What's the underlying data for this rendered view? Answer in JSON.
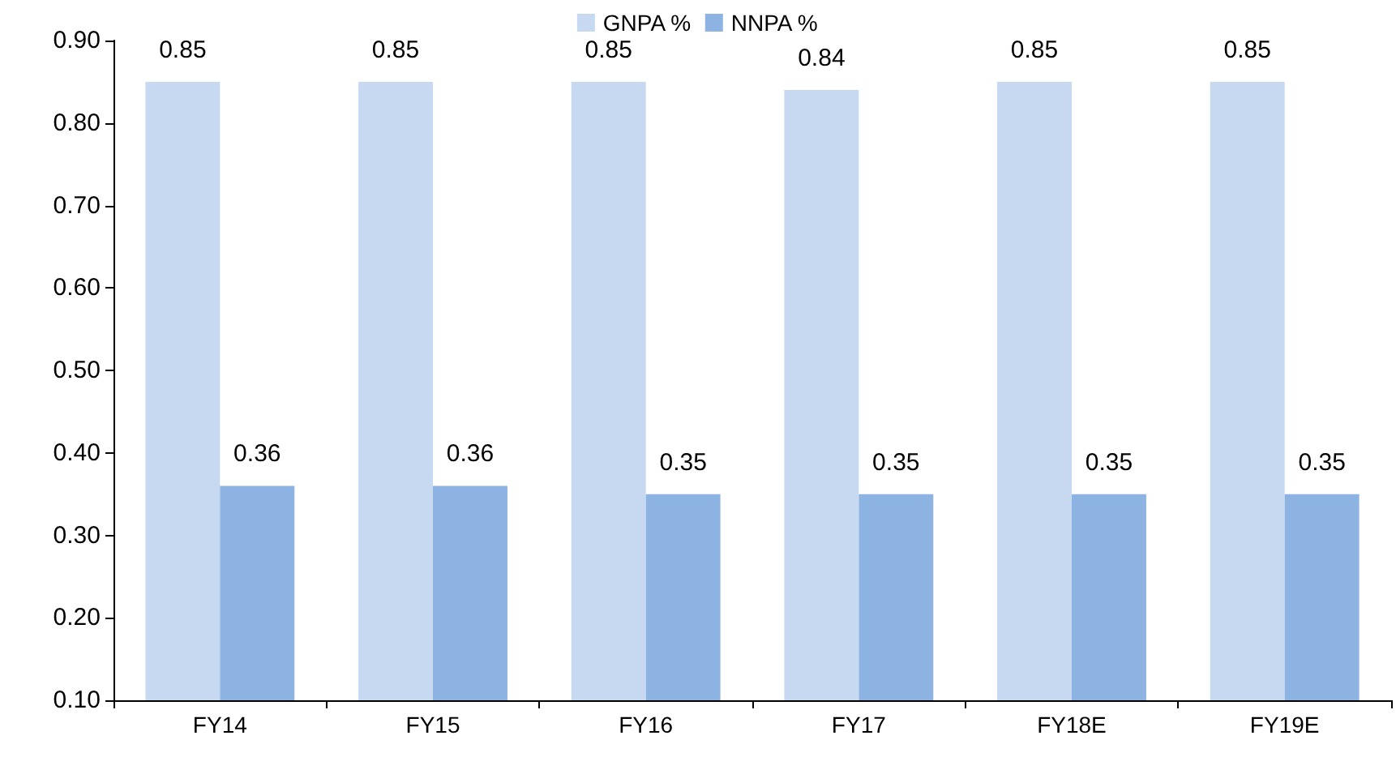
{
  "chart_data": {
    "type": "bar",
    "categories": [
      "FY14",
      "FY15",
      "FY16",
      "FY17",
      "FY18E",
      "FY19E"
    ],
    "series": [
      {
        "name": "GNPA %",
        "color": "#c6d9f1",
        "values": [
          0.85,
          0.85,
          0.85,
          0.84,
          0.85,
          0.85
        ]
      },
      {
        "name": "NNPA %",
        "color": "#8db3e2",
        "values": [
          0.36,
          0.36,
          0.35,
          0.35,
          0.35,
          0.35
        ]
      }
    ],
    "ylim": [
      0.1,
      0.9
    ],
    "yticks": [
      {
        "value": 0.1,
        "label": "0.10"
      },
      {
        "value": 0.2,
        "label": "0.20"
      },
      {
        "value": 0.3,
        "label": "0.30"
      },
      {
        "value": 0.4,
        "label": "0.40"
      },
      {
        "value": 0.5,
        "label": "0.50"
      },
      {
        "value": 0.6,
        "label": "0.60"
      },
      {
        "value": 0.7,
        "label": "0.70"
      },
      {
        "value": 0.8,
        "label": "0.80"
      },
      {
        "value": 0.9,
        "label": "0.90"
      }
    ],
    "data_labels": true,
    "grid": false,
    "legend": "top"
  }
}
